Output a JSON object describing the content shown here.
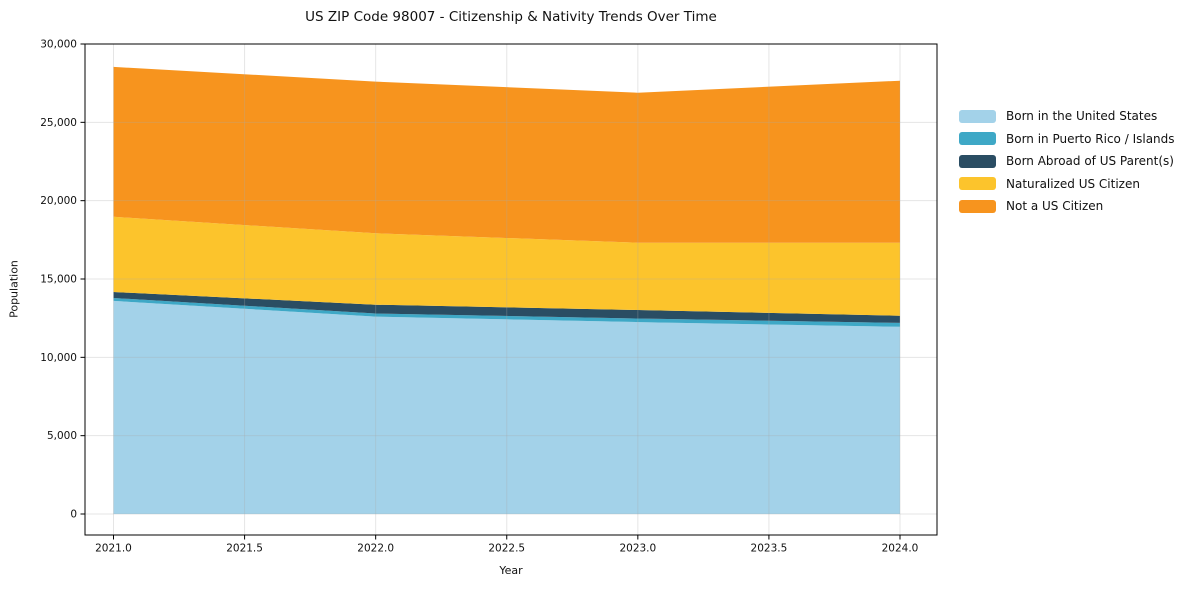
{
  "chart_data": {
    "type": "area",
    "stacked": true,
    "title": "US ZIP Code 98007 - Citizenship & Nativity Trends Over Time",
    "xlabel": "Year",
    "ylabel": "Population",
    "x": [
      2021,
      2022,
      2023,
      2024
    ],
    "series": [
      {
        "name": "Born in the United States",
        "color": "#a3d2e9",
        "values": [
          13600,
          12600,
          12250,
          11950
        ]
      },
      {
        "name": "Born in Puerto Rico / Islands",
        "color": "#3ea8c6",
        "values": [
          190,
          200,
          230,
          250
        ]
      },
      {
        "name": "Born Abroad of US Parent(s)",
        "color": "#2a4d63",
        "values": [
          380,
          560,
          540,
          460
        ]
      },
      {
        "name": "Naturalized US Citizen",
        "color": "#fcc42c",
        "values": [
          4800,
          4560,
          4300,
          4660
        ]
      },
      {
        "name": "Not a US Citizen",
        "color": "#f7941e",
        "values": [
          9570,
          9680,
          9570,
          10340
        ]
      }
    ],
    "totals": [
      28540,
      27600,
      26890,
      27660
    ],
    "xlim": [
      2021,
      2024
    ],
    "ylim": [
      0,
      30000
    ],
    "xticks": {
      "values": [
        2021,
        2021.5,
        2022,
        2022.5,
        2023,
        2023.5,
        2024
      ],
      "labels": [
        "2021.0",
        "2021.5",
        "2022.0",
        "2022.5",
        "2023.0",
        "2023.5",
        "2024.0"
      ]
    },
    "yticks": {
      "values": [
        0,
        5000,
        10000,
        15000,
        20000,
        25000,
        30000
      ],
      "labels": [
        "0",
        "5,000",
        "10,000",
        "15,000",
        "20,000",
        "25,000",
        "30,000"
      ]
    },
    "grid": true,
    "legend_position": "right",
    "frame_color": "#000000",
    "grid_color": "#aaaaaa",
    "text_color": "#111111"
  }
}
